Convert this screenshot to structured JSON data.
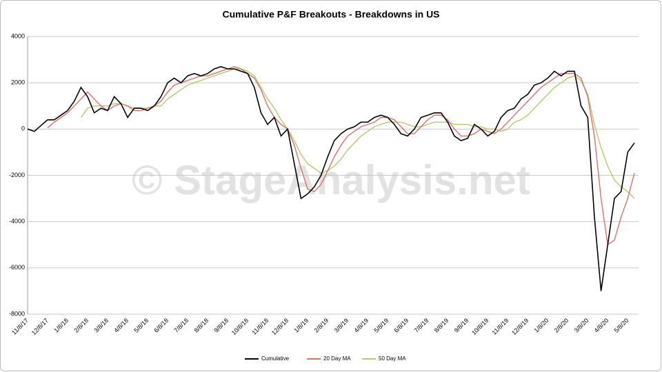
{
  "chart_data": {
    "type": "line",
    "title": "Cumulative P&F Breakouts - Breakdowns in US",
    "watermark": "© StageAnalysis.net",
    "categories": [
      "11/8/17",
      null,
      null,
      "12/8/17",
      null,
      null,
      "1/8/18",
      null,
      null,
      "2/8/18",
      null,
      null,
      "3/8/18",
      null,
      null,
      "4/8/18",
      null,
      null,
      "5/8/18",
      null,
      null,
      "6/8/18",
      null,
      null,
      "7/8/18",
      null,
      null,
      "8/8/18",
      null,
      null,
      "9/8/18",
      null,
      null,
      "10/8/18",
      null,
      null,
      "11/8/18",
      null,
      null,
      "12/8/18",
      null,
      null,
      "1/8/19",
      null,
      null,
      "2/8/19",
      null,
      null,
      "3/8/19",
      null,
      null,
      "4/8/19",
      null,
      null,
      "5/8/19",
      null,
      null,
      "6/8/19",
      null,
      null,
      "7/8/19",
      null,
      null,
      "8/8/19",
      null,
      null,
      "9/8/19",
      null,
      null,
      "10/8/19",
      null,
      null,
      "11/8/19",
      null,
      null,
      "12/8/19",
      null,
      null,
      "1/8/20",
      null,
      null,
      "2/8/20",
      null,
      null,
      "3/8/20",
      null,
      null,
      "4/8/20",
      null,
      null,
      "5/8/20",
      null
    ],
    "series": [
      {
        "name": "Cumulative",
        "color": "#000000",
        "values": [
          0,
          -100,
          150,
          400,
          400,
          600,
          800,
          1200,
          1800,
          1400,
          700,
          900,
          800,
          1400,
          1100,
          500,
          900,
          900,
          800,
          1000,
          1400,
          2000,
          2200,
          2000,
          2300,
          2400,
          2300,
          2400,
          2600,
          2700,
          2600,
          2600,
          2500,
          2400,
          1800,
          700,
          200,
          500,
          -300,
          0,
          -1500,
          -3000,
          -2800,
          -2500,
          -2000,
          -1200,
          -500,
          -200,
          0,
          100,
          300,
          300,
          500,
          600,
          500,
          200,
          -200,
          -300,
          0,
          500,
          600,
          700,
          700,
          300,
          -300,
          -500,
          -400,
          200,
          0,
          -300,
          -100,
          500,
          800,
          900,
          1300,
          1500,
          1900,
          2000,
          2200,
          2500,
          2300,
          2500,
          2500,
          1000,
          500,
          -3800,
          -7000,
          -5000,
          -3000,
          -2700,
          -1000,
          -600
        ]
      },
      {
        "name": "20 Day MA",
        "color": "#d9706b",
        "values": [
          null,
          null,
          null,
          50,
          300,
          500,
          700,
          1000,
          1300,
          1600,
          1300,
          1000,
          800,
          1000,
          1100,
          1000,
          800,
          800,
          900,
          1000,
          1200,
          1600,
          1900,
          2000,
          2100,
          2200,
          2300,
          2300,
          2400,
          2500,
          2600,
          2700,
          2600,
          2400,
          2200,
          1700,
          1000,
          500,
          200,
          0,
          -700,
          -1700,
          -2600,
          -2700,
          -2400,
          -1800,
          -1200,
          -700,
          -300,
          -100,
          100,
          200,
          300,
          500,
          500,
          400,
          100,
          -200,
          -200,
          100,
          400,
          600,
          600,
          400,
          0,
          -300,
          -300,
          -200,
          0,
          -100,
          -200,
          0,
          300,
          600,
          900,
          1200,
          1500,
          1800,
          2000,
          2200,
          2400,
          2400,
          2400,
          2200,
          1400,
          -300,
          -3000,
          -5000,
          -4800,
          -3800,
          -3000,
          -1900
        ]
      },
      {
        "name": "50 Day MA",
        "color": "#b5c96b",
        "values": [
          null,
          null,
          null,
          null,
          null,
          null,
          null,
          null,
          500,
          900,
          1000,
          1000,
          1000,
          1100,
          1100,
          1000,
          900,
          900,
          900,
          1000,
          1000,
          1300,
          1500,
          1700,
          1900,
          2000,
          2100,
          2200,
          2300,
          2400,
          2500,
          2600,
          2600,
          2500,
          2300,
          1800,
          1300,
          900,
          400,
          0,
          -500,
          -1100,
          -1500,
          -1700,
          -1900,
          -1800,
          -1600,
          -1300,
          -900,
          -600,
          -300,
          -100,
          100,
          200,
          300,
          300,
          300,
          200,
          100,
          100,
          200,
          300,
          300,
          300,
          200,
          200,
          200,
          100,
          100,
          0,
          0,
          -100,
          0,
          300,
          400,
          600,
          900,
          1200,
          1500,
          1800,
          2000,
          2200,
          2300,
          2100,
          1500,
          200,
          -800,
          -1600,
          -2200,
          -2500,
          -2700,
          -3000
        ]
      }
    ],
    "ylim": [
      -8000,
      4000
    ],
    "yticks": [
      -8000,
      -6000,
      -4000,
      -2000,
      0,
      2000,
      4000
    ],
    "grid": true,
    "legend": "bottom"
  }
}
